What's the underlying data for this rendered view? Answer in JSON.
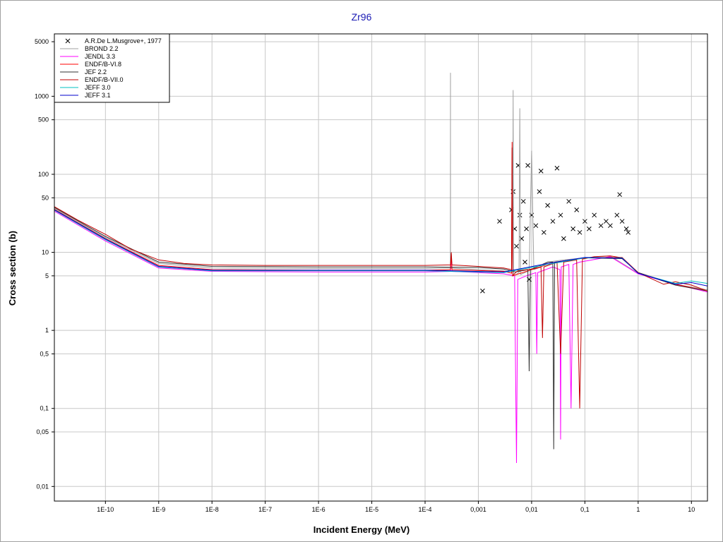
{
  "chart_data": {
    "type": "line",
    "title": "Zr96",
    "x_label": "Incident Energy (MeV)",
    "y_label": "Cross section (b)",
    "log_x": true,
    "log_y": true,
    "grid": true,
    "legend_position": "upper left",
    "xlim": [
      1.1e-11,
      20
    ],
    "ylim": [
      0.0065,
      6300
    ],
    "xticks": [
      {
        "value": 1e-10,
        "label": "1E-10"
      },
      {
        "value": 1e-09,
        "label": "1E-9"
      },
      {
        "value": 1e-08,
        "label": "1E-8"
      },
      {
        "value": 1e-07,
        "label": "1E-7"
      },
      {
        "value": 1e-06,
        "label": "1E-6"
      },
      {
        "value": 1e-05,
        "label": "1E-5"
      },
      {
        "value": 0.0001,
        "label": "1E-4"
      },
      {
        "value": 0.001,
        "label": "0,001"
      },
      {
        "value": 0.01,
        "label": "0,01"
      },
      {
        "value": 0.1,
        "label": "0,1"
      },
      1,
      10
    ],
    "yticks": [
      {
        "value": 0.01,
        "label": "0,01"
      },
      {
        "value": 0.05,
        "label": "0,05"
      },
      {
        "value": 0.1,
        "label": "0,1"
      },
      {
        "value": 0.5,
        "label": "0,5"
      },
      1,
      5,
      10,
      50,
      100,
      500,
      1000,
      5000
    ],
    "series": [
      {
        "name": "A.R.De L.Musgrove+, 1977",
        "type": "scatter",
        "marker": "x",
        "color": "#000000",
        "x": [
          0.0012,
          0.0025,
          0.0042,
          0.0045,
          0.0048,
          0.0052,
          0.0056,
          0.006,
          0.0065,
          0.007,
          0.0075,
          0.008,
          0.0085,
          0.009,
          0.01,
          0.012,
          0.014,
          0.015,
          0.017,
          0.02,
          0.025,
          0.03,
          0.035,
          0.04,
          0.05,
          0.06,
          0.07,
          0.08,
          0.1,
          0.12,
          0.15,
          0.2,
          0.25,
          0.3,
          0.4,
          0.45,
          0.5,
          0.6,
          0.65
        ],
        "values": [
          3.2,
          25,
          35,
          60,
          20,
          12,
          130,
          30,
          15,
          45,
          7.5,
          20,
          130,
          4.5,
          30,
          22,
          60,
          110,
          18,
          40,
          25,
          120,
          30,
          15,
          45,
          20,
          35,
          18,
          25,
          20,
          30,
          22,
          25,
          22,
          30,
          55,
          25,
          20,
          18
        ]
      },
      {
        "name": "BROND 2.2",
        "type": "line",
        "color": "#a0a0a0",
        "x": [
          1e-11,
          1e-10,
          1e-09,
          1e-08,
          1e-06,
          0.0001,
          0.000299,
          0.0003,
          0.000301,
          0.001,
          0.003,
          0.0044,
          0.0045,
          0.0046,
          0.0058,
          0.006,
          0.0062,
          0.009,
          0.01,
          0.011,
          0.015,
          0.02,
          0.04,
          0.1,
          0.3,
          1,
          5,
          20
        ],
        "values": [
          38,
          15.5,
          7.2,
          6.3,
          6.2,
          6.2,
          6.3,
          2000,
          6.3,
          6,
          5.8,
          5.6,
          1200,
          5,
          5.5,
          700,
          5.2,
          5.8,
          200,
          6,
          6.5,
          7.5,
          8,
          8.5,
          9,
          5.4,
          3.9,
          3.3
        ]
      },
      {
        "name": "JENDL 3.3",
        "type": "line",
        "color": "#ff00ff",
        "x": [
          1e-11,
          1e-10,
          1e-09,
          1e-08,
          1e-06,
          0.0001,
          0.0003,
          0.00031,
          0.00032,
          0.003,
          0.0048,
          0.0052,
          0.0055,
          0.008,
          0.012,
          0.0125,
          0.013,
          0.025,
          0.034,
          0.035,
          0.036,
          0.05,
          0.055,
          0.06,
          0.08,
          0.3,
          1,
          5,
          20
        ],
        "values": [
          35,
          14,
          6.3,
          5.7,
          5.6,
          5.6,
          5.7,
          9,
          5.7,
          5.3,
          5,
          0.02,
          4.5,
          5,
          5.5,
          0.5,
          5.5,
          6.5,
          6,
          0.04,
          6.5,
          7,
          0.1,
          7,
          7.5,
          8.8,
          5.3,
          3.9,
          3.1
        ]
      },
      {
        "name": "ENDF/B-VI.8",
        "type": "line",
        "color": "#ff0000",
        "x": [
          1e-11,
          1e-10,
          1e-09,
          1e-08,
          1e-06,
          0.0001,
          0.0003,
          0.00031,
          0.00032,
          0.003,
          0.0042,
          0.0043,
          0.0044,
          0.02,
          0.1,
          0.5,
          1,
          5,
          20
        ],
        "values": [
          37,
          15,
          6.8,
          6,
          5.9,
          5.9,
          6,
          9.5,
          6,
          5.7,
          5.4,
          260,
          5,
          7,
          8.5,
          8.6,
          5.5,
          3.9,
          3.2
        ]
      },
      {
        "name": "JEF 2.2",
        "type": "line",
        "color": "#303030",
        "x": [
          1e-11,
          1e-10,
          1e-09,
          1e-08,
          1e-06,
          0.0001,
          0.001,
          0.003,
          0.005,
          0.0085,
          0.009,
          0.0095,
          0.02,
          0.025,
          0.026,
          0.027,
          0.1,
          0.5,
          1,
          5,
          20
        ],
        "values": [
          39,
          16,
          7.5,
          6.6,
          6.5,
          6.5,
          6.4,
          6.1,
          5.6,
          6,
          0.3,
          6,
          7.5,
          7.5,
          0.03,
          7.5,
          8.5,
          8.3,
          5.5,
          3.8,
          3.2
        ]
      },
      {
        "name": "ENDF/B-VII.0",
        "type": "line",
        "color": "#c00000",
        "x": [
          1e-11,
          3e-11,
          1e-10,
          3e-10,
          1e-09,
          3e-09,
          1e-08,
          1e-07,
          1e-06,
          1e-05,
          0.0001,
          0.0003,
          0.00031,
          0.00032,
          0.001,
          0.003,
          0.0042,
          0.0043,
          0.0044,
          0.005,
          0.0055,
          0.008,
          0.012,
          0.015,
          0.016,
          0.017,
          0.03,
          0.035,
          0.04,
          0.07,
          0.08,
          0.09,
          0.15,
          0.3,
          0.5,
          1,
          3,
          5,
          10,
          20
        ],
        "values": [
          40,
          26,
          17,
          11,
          8,
          7.2,
          6.9,
          6.8,
          6.8,
          6.8,
          6.8,
          6.9,
          10,
          6.9,
          6.6,
          6.3,
          6,
          220,
          5,
          5.5,
          5.8,
          6,
          6.2,
          6.5,
          0.8,
          6.5,
          7.5,
          0.5,
          7.5,
          8,
          0.1,
          8.2,
          8.8,
          9,
          8.5,
          5.5,
          3.9,
          4.2,
          3.8,
          3.2
        ]
      },
      {
        "name": "JEFF 3.0",
        "type": "line",
        "color": "#00c0c0",
        "x": [
          1e-11,
          1e-10,
          1e-09,
          1e-08,
          1e-06,
          0.0001,
          0.003,
          0.02,
          0.1,
          0.5,
          1,
          5,
          10,
          20
        ],
        "values": [
          36,
          14.5,
          6.5,
          5.8,
          5.8,
          5.8,
          5.5,
          7,
          8.5,
          8.5,
          5.4,
          4,
          4.3,
          4
        ]
      },
      {
        "name": "JEFF 3.1",
        "type": "line",
        "color": "#0000cc",
        "x": [
          1e-11,
          1e-10,
          1e-09,
          1e-08,
          1e-06,
          0.0001,
          0.003,
          0.02,
          0.1,
          0.5,
          1,
          5,
          10,
          20
        ],
        "values": [
          36.5,
          14.8,
          6.6,
          5.9,
          5.9,
          5.9,
          5.6,
          7.2,
          8.6,
          8.4,
          5.4,
          3.9,
          4.1,
          3.7
        ]
      }
    ]
  }
}
